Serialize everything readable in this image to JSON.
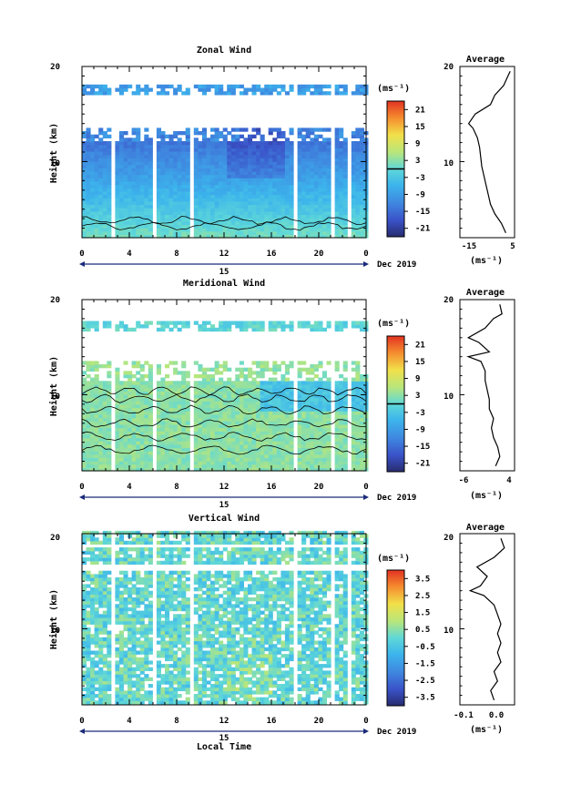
{
  "chart_data": [
    {
      "type": "heatmap",
      "title": "Zonal Wind",
      "xlabel": "",
      "ylabel": "Height (km)",
      "xlim": [
        0,
        24
      ],
      "ylim": [
        2,
        20
      ],
      "xticks": [
        "0",
        "4",
        "8",
        "12",
        "16",
        "20",
        "0"
      ],
      "yticks": [
        "10",
        "20"
      ],
      "colorbar": {
        "unit": "(ms⁻¹)",
        "ticks": [
          "21",
          "15",
          "9",
          "3",
          "-3",
          "-9",
          "-15",
          "-21"
        ],
        "range": [
          -24,
          24
        ],
        "zero_line": true
      },
      "profile": {
        "title": "Average",
        "xlabel": "(ms⁻¹)",
        "xticks": [
          "-15",
          "5"
        ],
        "xlim": [
          -19,
          6
        ],
        "yticks": [
          "10",
          "20"
        ],
        "heights": [
          2.5,
          3.5,
          4.5,
          5.5,
          6.5,
          7.5,
          8.5,
          9.5,
          10.5,
          11.5,
          12.5,
          13.0,
          13.5,
          14.0,
          15.0,
          16.0,
          17.0,
          18.0,
          19.0,
          19.5
        ],
        "values": [
          2.0,
          0.0,
          -3.0,
          -5.0,
          -6.0,
          -7.0,
          -8.0,
          -9.0,
          -9.5,
          -10.0,
          -11.0,
          -12.0,
          -13.0,
          -15.0,
          -12.0,
          -5.0,
          -3.0,
          1.0,
          3.0,
          4.0
        ]
      }
    },
    {
      "type": "heatmap",
      "title": "Meridional Wind",
      "xlabel": "",
      "ylabel": "Height (km)",
      "xlim": [
        0,
        24
      ],
      "ylim": [
        2,
        20
      ],
      "xticks": [
        "0",
        "4",
        "8",
        "12",
        "16",
        "20",
        "0"
      ],
      "yticks": [
        "10",
        "20"
      ],
      "colorbar": {
        "unit": "(ms⁻¹)",
        "ticks": [
          "21",
          "15",
          "9",
          "3",
          "-3",
          "-9",
          "-15",
          "-21"
        ],
        "range": [
          -24,
          24
        ],
        "zero_line": true
      },
      "profile": {
        "title": "Average",
        "xlabel": "(ms⁻¹)",
        "xticks": [
          "-6",
          "4"
        ],
        "xlim": [
          -8,
          5
        ],
        "yticks": [
          "10",
          "20"
        ],
        "heights": [
          2.5,
          3.5,
          4.5,
          5.5,
          6.5,
          7.5,
          8.5,
          9.5,
          10.5,
          11.5,
          12.5,
          13.5,
          14.0,
          14.5,
          15.5,
          16.0,
          17.0,
          18.0,
          18.5,
          19.5
        ],
        "values": [
          0.5,
          1.5,
          1.0,
          0.0,
          -0.5,
          0.0,
          -1.0,
          -1.0,
          -1.5,
          -2.0,
          -2.0,
          -3.0,
          -6.0,
          -1.0,
          -3.5,
          -6.0,
          -2.0,
          0.0,
          2.0,
          1.5
        ]
      }
    },
    {
      "type": "heatmap",
      "title": "Vertical Wind",
      "xlabel": "Local Time",
      "ylabel": "Height (km)",
      "xlim": [
        0,
        24
      ],
      "ylim": [
        2,
        20
      ],
      "xticks": [
        "0",
        "4",
        "8",
        "12",
        "16",
        "20",
        "0"
      ],
      "yticks": [
        "10",
        "20"
      ],
      "colorbar": {
        "unit": "(ms⁻¹)",
        "ticks": [
          "3.5",
          "2.5",
          "1.5",
          "0.5",
          "-0.5",
          "-1.5",
          "-2.5",
          "-3.5"
        ],
        "range": [
          -4,
          4
        ],
        "zero_line": false
      },
      "profile": {
        "title": "Average",
        "xlabel": "(ms⁻¹)",
        "xticks": [
          "-0.1",
          "0.0"
        ],
        "xlim": [
          -0.12,
          0.04
        ],
        "yticks": [
          "10",
          "20"
        ],
        "heights": [
          2.5,
          3.5,
          4.5,
          5.5,
          6.5,
          7.5,
          8.5,
          9.5,
          10.5,
          11.5,
          12.5,
          13.5,
          14.0,
          14.5,
          15.5,
          16.5,
          17.5,
          18.5,
          19.5
        ],
        "values": [
          -0.02,
          -0.03,
          -0.01,
          -0.02,
          0.0,
          -0.01,
          0.0,
          -0.01,
          0.0,
          -0.01,
          -0.02,
          -0.05,
          -0.09,
          -0.06,
          -0.04,
          -0.07,
          -0.02,
          0.01,
          0.0
        ]
      }
    }
  ],
  "date_axis": {
    "day": "15",
    "month_year": "Dec 2019"
  }
}
